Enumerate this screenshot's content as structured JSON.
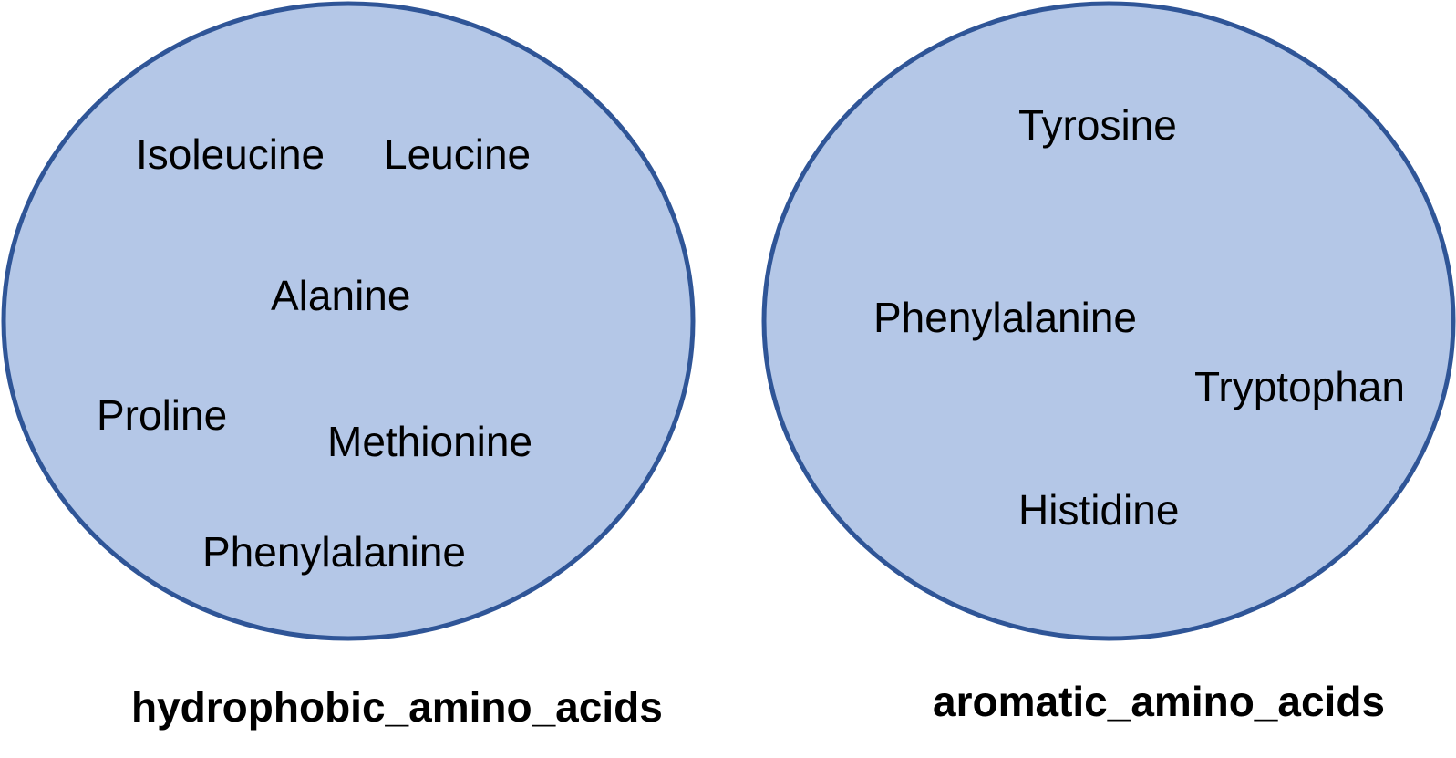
{
  "colors": {
    "set_fill": "#b4c7e7",
    "set_stroke": "#2f5597",
    "text": "#000000"
  },
  "sets": [
    {
      "name": "hydrophobic_amino_acids",
      "members": [
        "Isoleucine",
        "Leucine",
        "Alanine",
        "Proline",
        "Methionine",
        "Phenylalanine"
      ]
    },
    {
      "name": "aromatic_amino_acids",
      "members": [
        "Tyrosine",
        "Phenylalanine",
        "Tryptophan",
        "Histidine"
      ]
    }
  ]
}
